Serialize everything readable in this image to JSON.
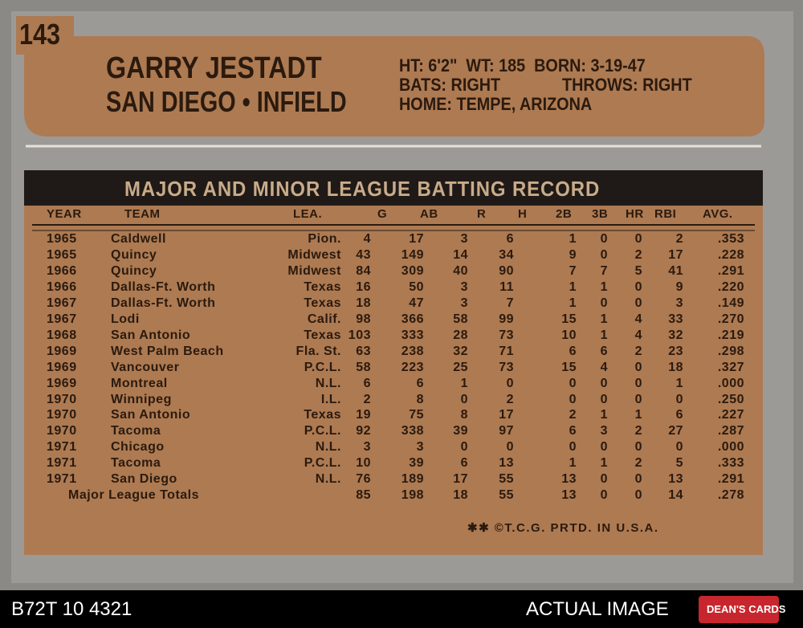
{
  "card": {
    "number": "143",
    "name": "GARRY JESTADT",
    "team_position": "SAN DIEGO • INFIELD",
    "bio": [
      "HT: 6'2\"  WT: 185  BORN: 3-19-47",
      "BATS: RIGHT",
      "THROWS: RIGHT",
      "HOME: TEMPE, ARIZONA"
    ],
    "banner": "MAJOR AND MINOR LEAGUE BATTING RECORD",
    "footer": "✱✱ ©T.C.G. PRTD. IN U.S.A."
  },
  "table": {
    "header": [
      "YEAR",
      "TEAM",
      "LEA.",
      "G",
      "AB",
      "R",
      "H",
      "2B",
      "3B",
      "HR",
      "RBI",
      "AVG."
    ],
    "rows": [
      [
        "1965",
        "Caldwell",
        "Pion.",
        "4",
        "17",
        "3",
        "6",
        "1",
        "0",
        "0",
        "2",
        ".353"
      ],
      [
        "1965",
        "Quincy",
        "Midwest",
        "43",
        "149",
        "14",
        "34",
        "9",
        "0",
        "2",
        "17",
        ".228"
      ],
      [
        "1966",
        "Quincy",
        "Midwest",
        "84",
        "309",
        "40",
        "90",
        "7",
        "7",
        "5",
        "41",
        ".291"
      ],
      [
        "1966",
        "Dallas-Ft. Worth",
        "Texas",
        "16",
        "50",
        "3",
        "11",
        "1",
        "1",
        "0",
        "9",
        ".220"
      ],
      [
        "1967",
        "Dallas-Ft. Worth",
        "Texas",
        "18",
        "47",
        "3",
        "7",
        "1",
        "0",
        "0",
        "3",
        ".149"
      ],
      [
        "1967",
        "Lodi",
        "Calif.",
        "98",
        "366",
        "58",
        "99",
        "15",
        "1",
        "4",
        "33",
        ".270"
      ],
      [
        "1968",
        "San Antonio",
        "Texas",
        "103",
        "333",
        "28",
        "73",
        "10",
        "1",
        "4",
        "32",
        ".219"
      ],
      [
        "1969",
        "West Palm Beach",
        "Fla. St.",
        "63",
        "238",
        "32",
        "71",
        "6",
        "6",
        "2",
        "23",
        ".298"
      ],
      [
        "1969",
        "Vancouver",
        "P.C.L.",
        "58",
        "223",
        "25",
        "73",
        "15",
        "4",
        "0",
        "18",
        ".327"
      ],
      [
        "1969",
        "Montreal",
        "N.L.",
        "6",
        "6",
        "1",
        "0",
        "0",
        "0",
        "0",
        "1",
        ".000"
      ],
      [
        "1970",
        "Winnipeg",
        "I.L.",
        "2",
        "8",
        "0",
        "2",
        "0",
        "0",
        "0",
        "0",
        ".250"
      ],
      [
        "1970",
        "San Antonio",
        "Texas",
        "19",
        "75",
        "8",
        "17",
        "2",
        "1",
        "1",
        "6",
        ".227"
      ],
      [
        "1970",
        "Tacoma",
        "P.C.L.",
        "92",
        "338",
        "39",
        "97",
        "6",
        "3",
        "2",
        "27",
        ".287"
      ],
      [
        "1971",
        "Chicago",
        "N.L.",
        "3",
        "3",
        "0",
        "0",
        "0",
        "0",
        "0",
        "0",
        ".000"
      ],
      [
        "1971",
        "Tacoma",
        "P.C.L.",
        "10",
        "39",
        "6",
        "13",
        "1",
        "1",
        "2",
        "5",
        ".333"
      ],
      [
        "1971",
        "San Diego",
        "N.L.",
        "76",
        "189",
        "17",
        "55",
        "13",
        "0",
        "0",
        "13",
        ".291"
      ]
    ],
    "totals": [
      "Major League Totals",
      "85",
      "198",
      "18",
      "55",
      "13",
      "0",
      "0",
      "14",
      ".278"
    ]
  },
  "caption": {
    "id": "B72T 10 4321",
    "note": "ACTUAL IMAGE",
    "logo": "DEAN'S CARDS"
  }
}
